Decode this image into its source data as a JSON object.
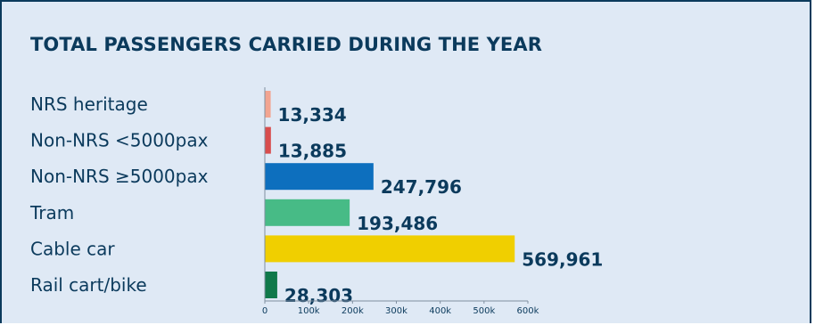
{
  "chart_data": {
    "type": "bar",
    "orientation": "horizontal",
    "title": "TOTAL PASSENGERS CARRIED DURING THE YEAR",
    "categories": [
      "NRS heritage",
      "Non-NRS <5000pax",
      "Non-NRS ≥5000pax",
      "Tram",
      "Cable car",
      "Rail cart/bike"
    ],
    "values": [
      13334,
      13885,
      247796,
      193486,
      569961,
      28303
    ],
    "value_labels": [
      "13,334",
      "13,885",
      "247,796",
      "193,486",
      "569,961",
      "28,303"
    ],
    "colors": [
      "#f2a490",
      "#d84d4d",
      "#0d6fbe",
      "#47bb86",
      "#f0cf00",
      "#10794a"
    ],
    "xlim": [
      0,
      600000
    ],
    "xticks": [
      0,
      100000,
      200000,
      300000,
      400000,
      500000,
      600000
    ],
    "xtick_labels": [
      "0",
      "100k",
      "200k",
      "300k",
      "400k",
      "500k",
      "600k"
    ],
    "grid": false,
    "legend": "none"
  }
}
